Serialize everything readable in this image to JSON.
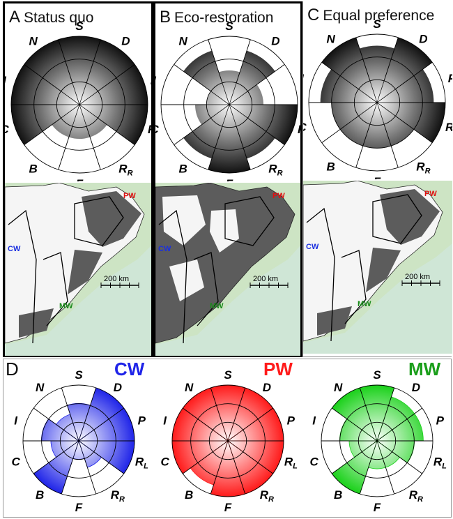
{
  "axis_labels": [
    "S",
    "D",
    "P",
    "R",
    "R",
    "F",
    "B",
    "C",
    "I",
    "N"
  ],
  "axis_subscripts": [
    "",
    "",
    "",
    "L",
    "R",
    "",
    "",
    "",
    "",
    ""
  ],
  "panels": [
    {
      "letter": "A",
      "title": "Status quo",
      "values": [
        1,
        1,
        1,
        1,
        0.5,
        0.5,
        0.5,
        1,
        1,
        1
      ]
    },
    {
      "letter": "B",
      "title": "Eco-restoration",
      "values": [
        0.5,
        0.83,
        0.5,
        1,
        0.83,
        1,
        0.83,
        0.5,
        0.33,
        0.83
      ]
    },
    {
      "letter": "C",
      "title": "Equal preference",
      "values": [
        0.83,
        1,
        0.83,
        1,
        0.67,
        0.67,
        0.67,
        0.67,
        0.83,
        1
      ]
    }
  ],
  "map_labels": {
    "pw": "PW",
    "cw": "CW",
    "mw": "MW",
    "scale": "200 km"
  },
  "bottom": {
    "letter": "D",
    "roses": [
      {
        "name": "CW",
        "color": "#1f24e8",
        "values": [
          0.67,
          1,
          1,
          1,
          0.5,
          0.33,
          1,
          0.5,
          0.67,
          0.5
        ]
      },
      {
        "name": "PW",
        "color": "#ff1a1a",
        "values": [
          1,
          1,
          1,
          1,
          1,
          1,
          0.83,
          1,
          1,
          1
        ]
      },
      {
        "name": "MW",
        "color": "#1ad11a",
        "values": [
          1,
          0.83,
          0.83,
          0.67,
          0.5,
          0.5,
          1,
          0.5,
          0.67,
          1
        ]
      }
    ]
  },
  "colors": {
    "land_white": "#f5f5f5",
    "land_gray": "#5c5c5c",
    "sea": "#cfe6d6",
    "landbg": "#cde4c4"
  }
}
